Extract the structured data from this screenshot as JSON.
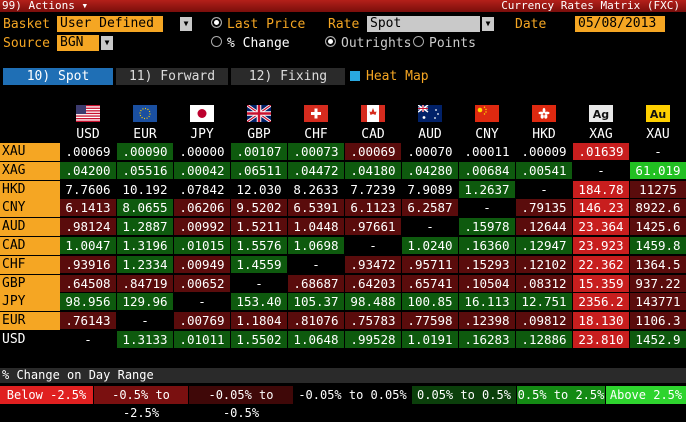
{
  "titlebar": {
    "menu": "99) Actions ▾",
    "title": "Currency Rates Matrix (FXC)"
  },
  "controls": {
    "basket_label": "Basket",
    "basket_value": "User Defined",
    "source_label": "Source",
    "source_value": "BGN",
    "radio_last_price": "Last Price",
    "radio_pct_change": "% Change",
    "rate_label": "Rate",
    "rate_value": "Spot",
    "radio_outrights": "Outrights",
    "radio_points": "Points",
    "date_label": "Date",
    "date_value": "05/08/2013"
  },
  "tabs": [
    {
      "label": "10) Spot"
    },
    {
      "label": "11) Forward"
    },
    {
      "label": "12) Fixing"
    }
  ],
  "heat_map_label": "Heat Map",
  "columns": [
    "USD",
    "EUR",
    "JPY",
    "GBP",
    "CHF",
    "CAD",
    "AUD",
    "CNY",
    "HKD",
    "XAG",
    "XAU"
  ],
  "flag_icons": [
    "us-flag-icon",
    "eu-flag-icon",
    "jp-flag-icon",
    "gb-flag-icon",
    "ch-flag-icon",
    "ca-flag-icon",
    "au-flag-icon",
    "cn-flag-icon",
    "hk-flag-icon",
    "silver-ag-icon",
    "gold-au-icon"
  ],
  "rows": [
    {
      "label": "XAU",
      "cells": [
        ".00069",
        ".00090",
        ".00000",
        ".00107",
        ".00073",
        ".00069",
        ".00070",
        ".00011",
        ".00009",
        ".01639",
        "-"
      ],
      "heat": [
        "k",
        "G",
        "k",
        "G",
        "G",
        "R",
        "k",
        "k",
        "k",
        "r",
        "k"
      ]
    },
    {
      "label": "XAG",
      "cells": [
        ".04200",
        ".05516",
        ".00042",
        ".06511",
        ".04472",
        ".04180",
        ".04280",
        ".00684",
        ".00541",
        "-",
        "61.019"
      ],
      "heat": [
        "G",
        "G",
        "G",
        "G",
        "G",
        "G",
        "G",
        "G",
        "G",
        "k",
        "g"
      ]
    },
    {
      "label": "HKD",
      "cells": [
        "7.7606",
        "10.192",
        ".07842",
        "12.030",
        "8.2633",
        "7.7239",
        "7.9089",
        "1.2637",
        "-",
        "184.78",
        "11275"
      ],
      "heat": [
        "k",
        "k",
        "k",
        "k",
        "k",
        "k",
        "k",
        "G",
        "k",
        "r",
        "R"
      ]
    },
    {
      "label": "CNY",
      "cells": [
        "6.1413",
        "8.0655",
        ".06206",
        "9.5202",
        "6.5391",
        "6.1123",
        "6.2587",
        "-",
        ".79135",
        "146.23",
        "8922.6"
      ],
      "heat": [
        "R",
        "G",
        "R",
        "R",
        "R",
        "R",
        "R",
        "k",
        "R",
        "r",
        "R"
      ]
    },
    {
      "label": "AUD",
      "cells": [
        ".98124",
        "1.2887",
        ".00992",
        "1.5211",
        "1.0448",
        ".97661",
        "-",
        ".15978",
        ".12644",
        "23.364",
        "1425.6"
      ],
      "heat": [
        "R",
        "G",
        "R",
        "R",
        "R",
        "R",
        "k",
        "G",
        "R",
        "r",
        "R"
      ]
    },
    {
      "label": "CAD",
      "cells": [
        "1.0047",
        "1.3196",
        ".01015",
        "1.5576",
        "1.0698",
        "-",
        "1.0240",
        ".16360",
        ".12947",
        "23.923",
        "1459.8"
      ],
      "heat": [
        "G",
        "G",
        "G",
        "G",
        "G",
        "k",
        "G",
        "G",
        "G",
        "r",
        "G"
      ]
    },
    {
      "label": "CHF",
      "cells": [
        ".93916",
        "1.2334",
        ".00949",
        "1.4559",
        "-",
        ".93472",
        ".95711",
        ".15293",
        ".12102",
        "22.362",
        "1364.5"
      ],
      "heat": [
        "R",
        "G",
        "R",
        "G",
        "k",
        "R",
        "R",
        "R",
        "R",
        "r",
        "R"
      ]
    },
    {
      "label": "GBP",
      "cells": [
        ".64508",
        ".84719",
        ".00652",
        "-",
        ".68687",
        ".64203",
        ".65741",
        ".10504",
        ".08312",
        "15.359",
        "937.22"
      ],
      "heat": [
        "R",
        "R",
        "R",
        "k",
        "R",
        "R",
        "R",
        "R",
        "R",
        "r",
        "R"
      ]
    },
    {
      "label": "JPY",
      "cells": [
        "98.956",
        "129.96",
        "-",
        "153.40",
        "105.37",
        "98.488",
        "100.85",
        "16.113",
        "12.751",
        "2356.2",
        "143771"
      ],
      "heat": [
        "G",
        "G",
        "k",
        "G",
        "G",
        "G",
        "G",
        "G",
        "G",
        "r",
        "R"
      ]
    },
    {
      "label": "EUR",
      "cells": [
        ".76143",
        "-",
        ".00769",
        "1.1804",
        ".81076",
        ".75783",
        ".77598",
        ".12398",
        ".09812",
        "18.130",
        "1106.3"
      ],
      "heat": [
        "R",
        "k",
        "R",
        "R",
        "R",
        "R",
        "R",
        "R",
        "R",
        "r",
        "R"
      ]
    },
    {
      "label": "USD",
      "cells": [
        "-",
        "1.3133",
        ".01011",
        "1.5502",
        "1.0648",
        ".99528",
        "1.0191",
        ".16283",
        ".12886",
        "23.810",
        "1452.9"
      ],
      "heat": [
        "k",
        "G",
        "G",
        "G",
        "G",
        "G",
        "G",
        "G",
        "G",
        "r",
        "G"
      ]
    }
  ],
  "legend": {
    "title": "% Change on Day Range",
    "buckets": [
      {
        "label": "Below -2.5%",
        "color": "#e02020"
      },
      {
        "label": "-0.5% to -2.5%",
        "color": "#7a1010"
      },
      {
        "label": "-0.05% to -0.5%",
        "color": "#3f0808"
      },
      {
        "label": "-0.05% to 0.05%",
        "color": "#000000"
      },
      {
        "label": "0.05% to 0.5%",
        "color": "#0b3f0b"
      },
      {
        "label": "0.5% to 2.5%",
        "color": "#148a14"
      },
      {
        "label": "Above 2.5%",
        "color": "#2ed42e"
      }
    ]
  },
  "colors": {
    "amber": "#f5a623",
    "heat_k": "#000000",
    "heat_R": "#5a0c0c",
    "heat_r": "#c81e1e",
    "heat_G": "#0e5a0e",
    "heat_g": "#22c022",
    "spot_tab": "#1f6fb5"
  }
}
